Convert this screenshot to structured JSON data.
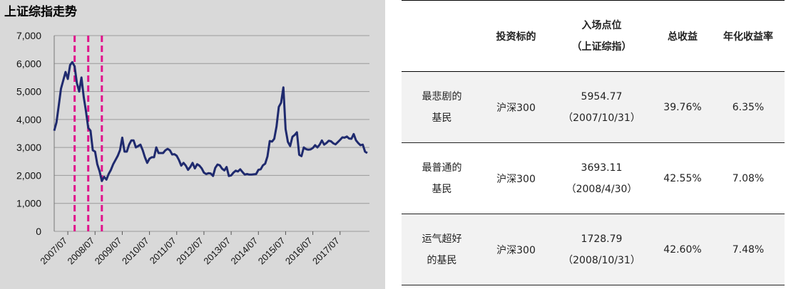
{
  "chart": {
    "title": "上证综指走势"
  },
  "chart_data": {
    "type": "line",
    "title": "上证综指走势",
    "xlabel": "",
    "ylabel": "",
    "ylim": [
      0,
      7000
    ],
    "yticks": [
      "0",
      "1,000",
      "2,000",
      "3,000",
      "4,000",
      "5,000",
      "6,000",
      "7,000"
    ],
    "xticks": [
      "2007/07",
      "2008/07",
      "2009/07",
      "2010/07",
      "2011/07",
      "2012/07",
      "2013/07",
      "2014/07",
      "2015/07",
      "2016/07",
      "2017/07"
    ],
    "grid": "horizontal",
    "legend": "none",
    "series": [
      {
        "color": "#1f2a6e",
        "points": [
          [
            "2007-01",
            3600
          ],
          [
            "2007-02",
            3900
          ],
          [
            "2007-03",
            4500
          ],
          [
            "2007-04",
            5100
          ],
          [
            "2007-05",
            5400
          ],
          [
            "2007-06",
            5700
          ],
          [
            "2007-07",
            5450
          ],
          [
            "2007-08",
            5950
          ],
          [
            "2007-09",
            6050
          ],
          [
            "2007-10",
            5900
          ],
          [
            "2007-11",
            5300
          ],
          [
            "2007-12",
            5000
          ],
          [
            "2008-01",
            5500
          ],
          [
            "2008-02",
            4800
          ],
          [
            "2008-03",
            4300
          ],
          [
            "2008-04",
            3700
          ],
          [
            "2008-05",
            3600
          ],
          [
            "2008-06",
            2900
          ],
          [
            "2008-07",
            2850
          ],
          [
            "2008-08",
            2400
          ],
          [
            "2008-09",
            2150
          ],
          [
            "2008-10",
            1800
          ],
          [
            "2008-11",
            1950
          ],
          [
            "2008-12",
            1850
          ],
          [
            "2009-01",
            2050
          ],
          [
            "2009-02",
            2200
          ],
          [
            "2009-03",
            2400
          ],
          [
            "2009-04",
            2550
          ],
          [
            "2009-05",
            2700
          ],
          [
            "2009-06",
            2900
          ],
          [
            "2009-07",
            3350
          ],
          [
            "2009-08",
            2850
          ],
          [
            "2009-09",
            2850
          ],
          [
            "2009-10",
            3100
          ],
          [
            "2009-11",
            3250
          ],
          [
            "2009-12",
            3250
          ],
          [
            "2010-01",
            3000
          ],
          [
            "2010-02",
            3050
          ],
          [
            "2010-03",
            3100
          ],
          [
            "2010-04",
            2900
          ],
          [
            "2010-05",
            2650
          ],
          [
            "2010-06",
            2450
          ],
          [
            "2010-07",
            2600
          ],
          [
            "2010-08",
            2650
          ],
          [
            "2010-09",
            2650
          ],
          [
            "2010-10",
            3000
          ],
          [
            "2010-11",
            2800
          ],
          [
            "2010-12",
            2800
          ],
          [
            "2011-01",
            2800
          ],
          [
            "2011-02",
            2900
          ],
          [
            "2011-03",
            2950
          ],
          [
            "2011-04",
            2900
          ],
          [
            "2011-05",
            2750
          ],
          [
            "2011-06",
            2760
          ],
          [
            "2011-07",
            2700
          ],
          [
            "2011-08",
            2550
          ],
          [
            "2011-09",
            2350
          ],
          [
            "2011-10",
            2450
          ],
          [
            "2011-11",
            2350
          ],
          [
            "2011-12",
            2200
          ],
          [
            "2012-01",
            2300
          ],
          [
            "2012-02",
            2450
          ],
          [
            "2012-03",
            2250
          ],
          [
            "2012-04",
            2400
          ],
          [
            "2012-05",
            2350
          ],
          [
            "2012-06",
            2250
          ],
          [
            "2012-07",
            2100
          ],
          [
            "2012-08",
            2050
          ],
          [
            "2012-09",
            2080
          ],
          [
            "2012-10",
            2070
          ],
          [
            "2012-11",
            1980
          ],
          [
            "2012-12",
            2270
          ],
          [
            "2013-01",
            2390
          ],
          [
            "2013-02",
            2360
          ],
          [
            "2013-03",
            2240
          ],
          [
            "2013-04",
            2180
          ],
          [
            "2013-05",
            2300
          ],
          [
            "2013-06",
            1980
          ],
          [
            "2013-07",
            2000
          ],
          [
            "2013-08",
            2100
          ],
          [
            "2013-09",
            2170
          ],
          [
            "2013-10",
            2140
          ],
          [
            "2013-11",
            2220
          ],
          [
            "2013-12",
            2120
          ],
          [
            "2014-01",
            2030
          ],
          [
            "2014-02",
            2050
          ],
          [
            "2014-03",
            2030
          ],
          [
            "2014-04",
            2030
          ],
          [
            "2014-05",
            2040
          ],
          [
            "2014-06",
            2050
          ],
          [
            "2014-07",
            2200
          ],
          [
            "2014-08",
            2220
          ],
          [
            "2014-09",
            2360
          ],
          [
            "2014-10",
            2420
          ],
          [
            "2014-11",
            2680
          ],
          [
            "2014-12",
            3230
          ],
          [
            "2015-01",
            3210
          ],
          [
            "2015-02",
            3310
          ],
          [
            "2015-03",
            3750
          ],
          [
            "2015-04",
            4450
          ],
          [
            "2015-05",
            4600
          ],
          [
            "2015-06",
            5150
          ],
          [
            "2015-07",
            3660
          ],
          [
            "2015-08",
            3200
          ],
          [
            "2015-09",
            3050
          ],
          [
            "2015-10",
            3380
          ],
          [
            "2015-11",
            3450
          ],
          [
            "2015-12",
            3540
          ],
          [
            "2016-01",
            2740
          ],
          [
            "2016-02",
            2690
          ],
          [
            "2016-03",
            3000
          ],
          [
            "2016-04",
            2940
          ],
          [
            "2016-05",
            2920
          ],
          [
            "2016-06",
            2930
          ],
          [
            "2016-07",
            2980
          ],
          [
            "2016-08",
            3080
          ],
          [
            "2016-09",
            3000
          ],
          [
            "2016-10",
            3100
          ],
          [
            "2016-11",
            3250
          ],
          [
            "2016-12",
            3100
          ],
          [
            "2017-01",
            3160
          ],
          [
            "2017-02",
            3240
          ],
          [
            "2017-03",
            3220
          ],
          [
            "2017-04",
            3150
          ],
          [
            "2017-05",
            3110
          ],
          [
            "2017-06",
            3190
          ],
          [
            "2017-07",
            3270
          ],
          [
            "2017-08",
            3360
          ],
          [
            "2017-09",
            3350
          ],
          [
            "2017-10",
            3390
          ],
          [
            "2017-11",
            3320
          ],
          [
            "2017-12",
            3310
          ],
          [
            "2018-01",
            3480
          ],
          [
            "2018-02",
            3260
          ],
          [
            "2018-03",
            3160
          ],
          [
            "2018-04",
            3080
          ],
          [
            "2018-05",
            3100
          ],
          [
            "2018-06",
            2850
          ],
          [
            "2018-07",
            2800
          ]
        ]
      }
    ],
    "markers": [
      {
        "date": "2007-10",
        "color": "#e0148c",
        "style": "dashed"
      },
      {
        "date": "2008-04",
        "color": "#e0148c",
        "style": "dashed"
      },
      {
        "date": "2008-10",
        "color": "#e0148c",
        "style": "dashed"
      }
    ]
  },
  "table": {
    "headers": [
      "",
      "投资标的",
      "入场点位\n（上证综指）",
      "总收益",
      "年化收益率"
    ],
    "rows": [
      {
        "label": [
          "最悲剧的",
          "基民"
        ],
        "target": "沪深300",
        "entry": [
          "5954.77",
          "（2007/10/31）"
        ],
        "total": "39.76%",
        "annual": "6.35%"
      },
      {
        "label": [
          "最普通的",
          "基民"
        ],
        "target": "沪深300",
        "entry": [
          "3693.11",
          "（2008/4/30）"
        ],
        "total": "42.55%",
        "annual": "7.08%"
      },
      {
        "label": [
          "运气超好",
          "的基民"
        ],
        "target": "沪深300",
        "entry": [
          "1728.79",
          "（2008/10/31）"
        ],
        "total": "42.60%",
        "annual": "7.48%"
      }
    ]
  }
}
